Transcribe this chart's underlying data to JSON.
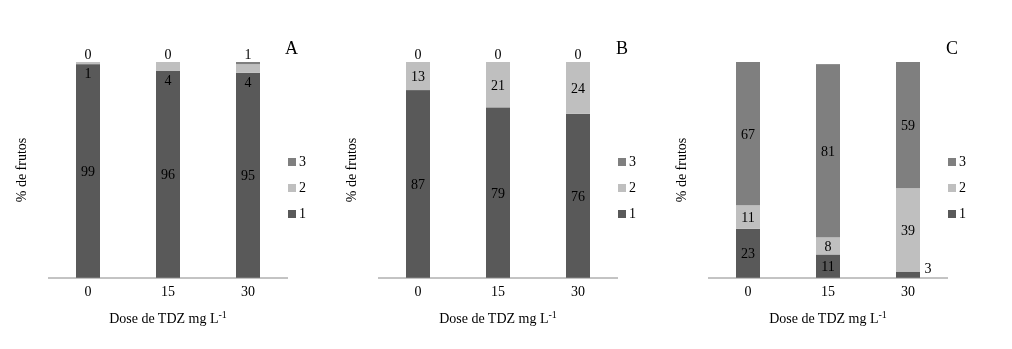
{
  "chart_data": [
    {
      "type": "bar",
      "title": "A",
      "stacked": true,
      "data_labels": true,
      "legend": "right",
      "grid": false,
      "xlabel": "Dose de TDZ mg L$^{-1}$",
      "ylabel": "% de frutos",
      "categories": [
        "0",
        "15",
        "30"
      ],
      "series": [
        {
          "name": "1",
          "color": "#595959",
          "values": [
            99,
            96,
            95
          ]
        },
        {
          "name": "2",
          "color": "#bfbfbf",
          "values": [
            1,
            4,
            4
          ]
        },
        {
          "name": "3",
          "color": "#7f7f7f",
          "values": [
            0,
            0,
            1
          ]
        }
      ]
    },
    {
      "type": "bar",
      "title": "B",
      "stacked": true,
      "data_labels": true,
      "legend": "right",
      "grid": false,
      "xlabel": "Dose de TDZ mg L$^{-1}$",
      "ylabel": "% de frutos",
      "categories": [
        "0",
        "15",
        "30"
      ],
      "series": [
        {
          "name": "1",
          "color": "#595959",
          "values": [
            87,
            79,
            76
          ]
        },
        {
          "name": "2",
          "color": "#bfbfbf",
          "values": [
            13,
            21,
            24
          ]
        },
        {
          "name": "3",
          "color": "#7f7f7f",
          "values": [
            0,
            0,
            0
          ]
        }
      ]
    },
    {
      "type": "bar",
      "title": "C",
      "stacked": true,
      "data_labels": true,
      "legend": "right",
      "grid": false,
      "xlabel": "Dose de TDZ mg L$^{-1}$",
      "ylabel": "% de  frutos",
      "categories": [
        "0",
        "15",
        "30"
      ],
      "series": [
        {
          "name": "1",
          "color": "#595959",
          "values": [
            23,
            11,
            3
          ]
        },
        {
          "name": "2",
          "color": "#bfbfbf",
          "values": [
            11,
            8,
            39
          ]
        },
        {
          "name": "3",
          "color": "#7f7f7f",
          "values": [
            67,
            81,
            59
          ]
        }
      ]
    }
  ]
}
